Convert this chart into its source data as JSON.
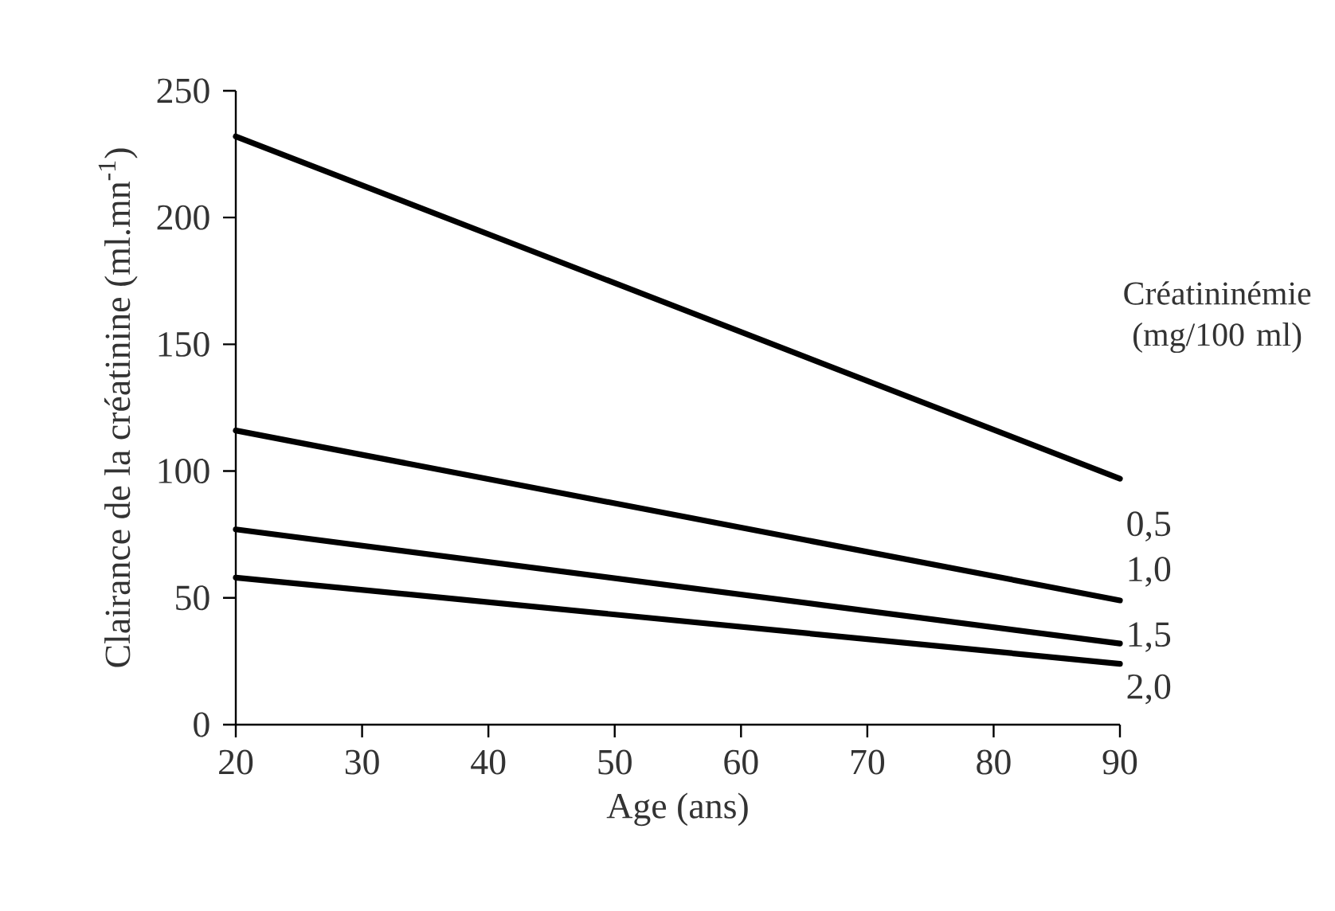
{
  "chart_data": {
    "type": "line",
    "xlabel": "Age (ans)",
    "ylabel": "Clairance de la créatinine (ml.mn$^{-1}$)",
    "legend_title": "Créatininémie (mg/100 ml)",
    "x": [
      20,
      90
    ],
    "series": [
      {
        "name": "0,5",
        "color": "#000000",
        "values": [
          232,
          97
        ]
      },
      {
        "name": "1,0",
        "color": "#000000",
        "values": [
          116,
          49
        ]
      },
      {
        "name": "1,5",
        "color": "#000000",
        "values": [
          77,
          32
        ]
      },
      {
        "name": "2,0",
        "color": "#000000",
        "values": [
          58,
          24
        ]
      }
    ],
    "xlim": [
      20,
      90
    ],
    "ylim": [
      0,
      250
    ],
    "xticks": [
      20,
      30,
      40,
      50,
      60,
      70,
      80,
      90
    ],
    "yticks": [
      0,
      50,
      100,
      150,
      200,
      250
    ],
    "grid": false,
    "legend": false,
    "marker": "none",
    "line_style": "solid"
  }
}
